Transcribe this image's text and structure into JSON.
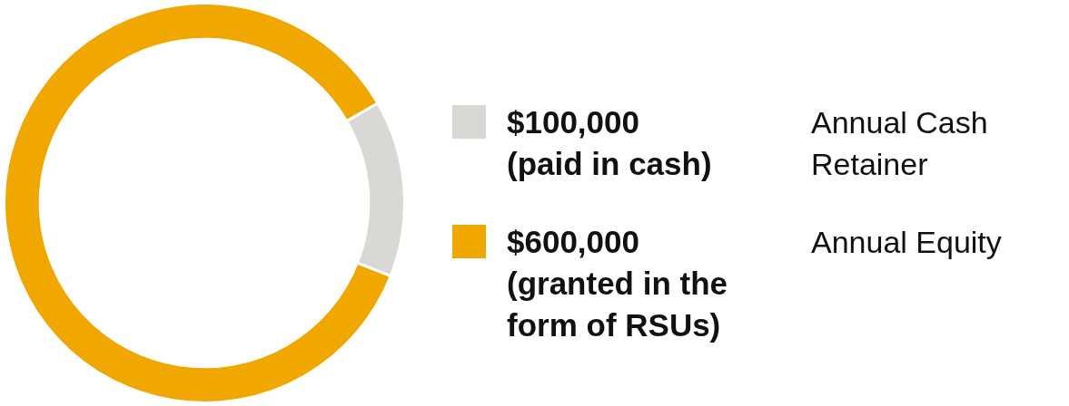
{
  "chart_data": {
    "type": "donut",
    "categories": [
      "$100,000 (paid in cash)",
      "$600,000 (granted in the form of RSUs)"
    ],
    "values": [
      100000,
      600000
    ],
    "colors": [
      "#d9d8d4",
      "#f0a800"
    ],
    "annotations": [
      "Annual Cash Retainer",
      "Annual Equity"
    ],
    "legend": "right"
  }
}
